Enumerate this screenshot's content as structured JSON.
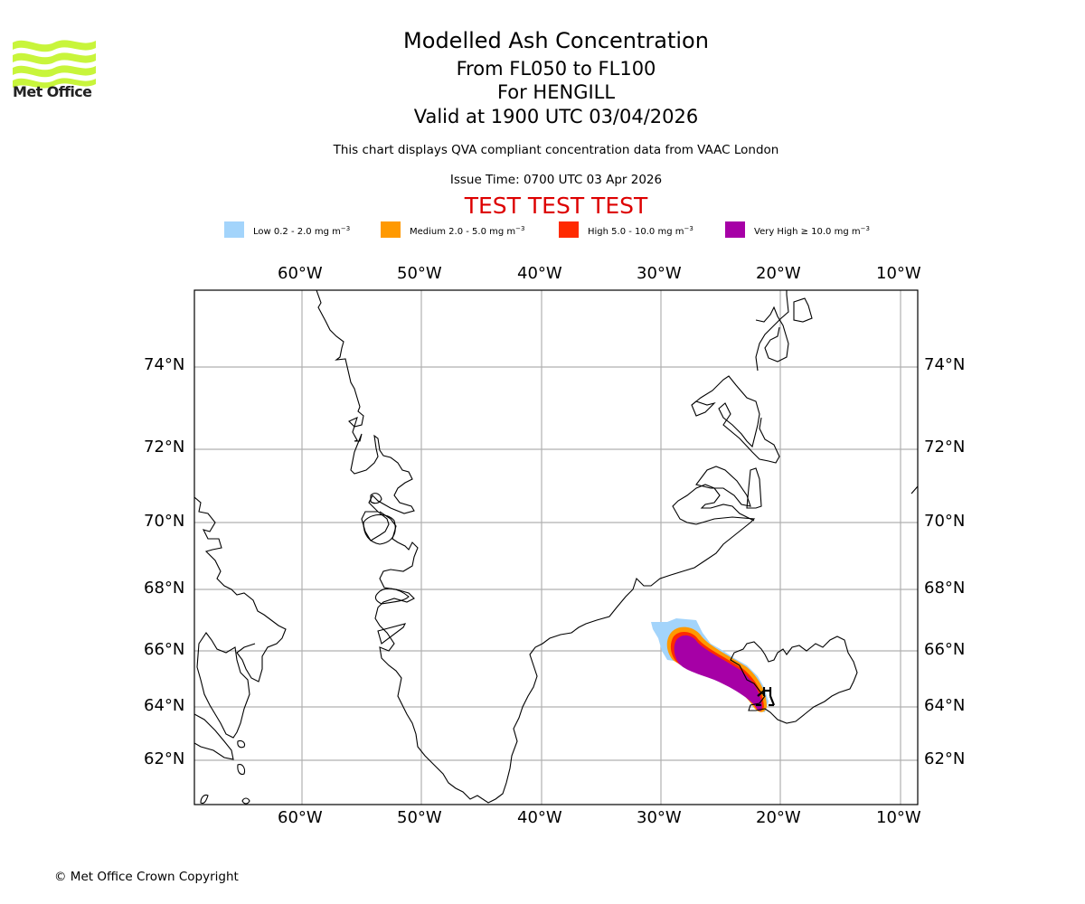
{
  "logo": {
    "text": "Met Office",
    "colors": {
      "waves": "#c8f53b",
      "text": "#222222"
    }
  },
  "title": {
    "line1": "Modelled Ash Concentration",
    "line2": "From FL050 to FL100",
    "line3": "For HENGILL",
    "line4": "Valid at 1900 UTC 03/04/2026"
  },
  "subtitle": "This chart displays QVA compliant concentration data from VAAC London",
  "issue_time": "Issue Time: 0700 UTC 03 Apr 2026",
  "test_banner": "TEST TEST TEST",
  "legend": [
    {
      "label": "Low 0.2 - 2.0 mg m",
      "exp": "−3",
      "color": "#a3d4fb"
    },
    {
      "label": "Medium 2.0 - 5.0 mg m",
      "exp": "−3",
      "color": "#ff9900"
    },
    {
      "label": "High 5.0 - 10.0 mg m",
      "exp": "−3",
      "color": "#ff2a00"
    },
    {
      "label": "Very High  ≥  10.0 mg m",
      "exp": "−3",
      "color": "#a600a6"
    }
  ],
  "map": {
    "lon_ticks": [
      "60°W",
      "50°W",
      "40°W",
      "30°W",
      "20°W",
      "10°W"
    ],
    "lat_ticks": [
      "74°N",
      "72°N",
      "70°N",
      "68°N",
      "66°N",
      "64°N",
      "62°N"
    ],
    "volcano_marker": "volcano-icon",
    "grid_color": "#b0b0b0"
  },
  "copyright": "© Met Office Crown Copyright"
}
